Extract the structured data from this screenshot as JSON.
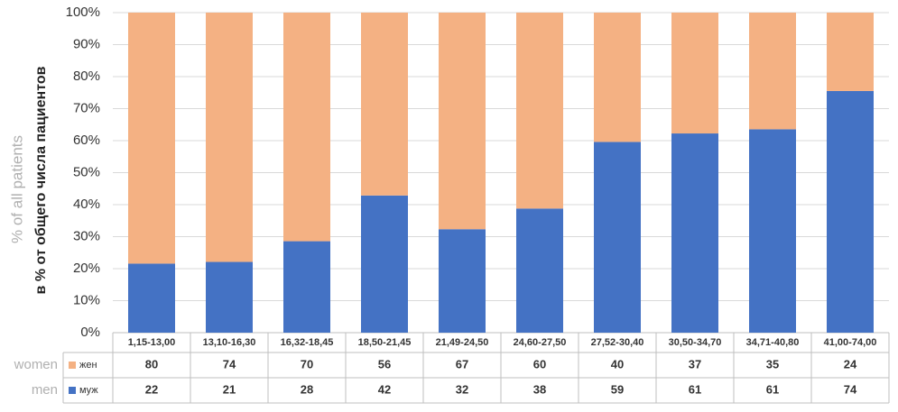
{
  "chart_data": {
    "type": "bar",
    "stacking": "percent",
    "y_label": "в % от общего числа пациентов",
    "y_label_en": "% of all patients",
    "categories": [
      "1,15-13,00",
      "13,10-16,30",
      "16,32-18,45",
      "18,50-21,45",
      "21,49-24,50",
      "24,60-27,50",
      "27,52-30,40",
      "30,50-34,70",
      "34,71-40,80",
      "41,00-74,00"
    ],
    "series": [
      {
        "name": "жен",
        "name_en": "women",
        "color": "#f4b183",
        "values": [
          80,
          74,
          70,
          56,
          67,
          60,
          40,
          37,
          35,
          24
        ]
      },
      {
        "name": "муж",
        "name_en": "men",
        "color": "#4472c4",
        "values": [
          22,
          21,
          28,
          42,
          32,
          38,
          59,
          61,
          61,
          74
        ]
      }
    ],
    "ylim": [
      0,
      100
    ],
    "yticks": [
      {
        "value": 0,
        "label": "0%"
      },
      {
        "value": 10,
        "label": "10%"
      },
      {
        "value": 20,
        "label": "20%"
      },
      {
        "value": 30,
        "label": "30%"
      },
      {
        "value": 40,
        "label": "40%"
      },
      {
        "value": 50,
        "label": "50%"
      },
      {
        "value": 60,
        "label": "60%"
      },
      {
        "value": 70,
        "label": "70%"
      },
      {
        "value": 80,
        "label": "80%"
      },
      {
        "value": 90,
        "label": "90%"
      },
      {
        "value": 100,
        "label": "100%"
      }
    ],
    "grid": true
  }
}
